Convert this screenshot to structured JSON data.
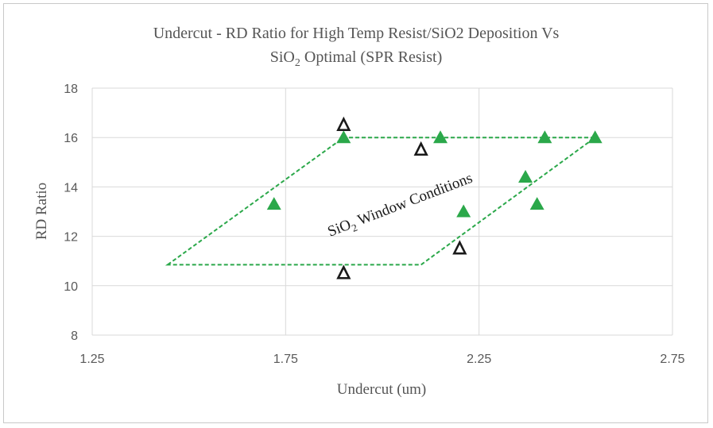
{
  "chart_data": {
    "type": "scatter",
    "title_line1": "Undercut - RD Ratio for High Temp Resist/SiO2 Deposition Vs",
    "title_line2_pre": "SiO",
    "title_line2_sub": "2",
    "title_line2_post": " Optimal (SPR Resist)",
    "xlabel": "Undercut (um)",
    "ylabel": "RD Ratio",
    "xlim": [
      1.25,
      2.75
    ],
    "ylim": [
      8,
      18
    ],
    "x_ticks": [
      1.25,
      1.75,
      2.25,
      2.75
    ],
    "x_tick_labels": [
      "1.25",
      "1.75",
      "2.25",
      "2.75"
    ],
    "y_ticks": [
      8,
      10,
      12,
      14,
      16,
      18
    ],
    "y_tick_labels": [
      "8",
      "10",
      "12",
      "14",
      "16",
      "18"
    ],
    "grid": true,
    "legend": "none",
    "series": [
      {
        "marker": "filled-triangle",
        "color": "#2ba84a",
        "points": [
          {
            "x": 1.72,
            "y": 13.3
          },
          {
            "x": 1.9,
            "y": 16.0
          },
          {
            "x": 2.15,
            "y": 16.0
          },
          {
            "x": 2.42,
            "y": 16.0
          },
          {
            "x": 2.55,
            "y": 16.0
          },
          {
            "x": 2.37,
            "y": 14.4
          },
          {
            "x": 2.4,
            "y": 13.3
          },
          {
            "x": 2.21,
            "y": 13.0
          }
        ]
      },
      {
        "marker": "open-triangle",
        "color": "#1a1a1a",
        "points": [
          {
            "x": 1.9,
            "y": 16.5
          },
          {
            "x": 2.1,
            "y": 15.5
          },
          {
            "x": 2.2,
            "y": 11.5
          },
          {
            "x": 1.9,
            "y": 10.5
          }
        ]
      }
    ],
    "window_region": {
      "color": "#2ba84a",
      "vertices": [
        {
          "x": 1.445,
          "y": 10.85
        },
        {
          "x": 1.9,
          "y": 16.0
        },
        {
          "x": 2.55,
          "y": 16.0
        },
        {
          "x": 2.1,
          "y": 10.85
        }
      ]
    },
    "annotation": {
      "text_pre": "SiO",
      "text_sub": "2",
      "text_post": " Window Conditions",
      "x": 2.05,
      "y": 13.1,
      "angle": -21
    }
  }
}
